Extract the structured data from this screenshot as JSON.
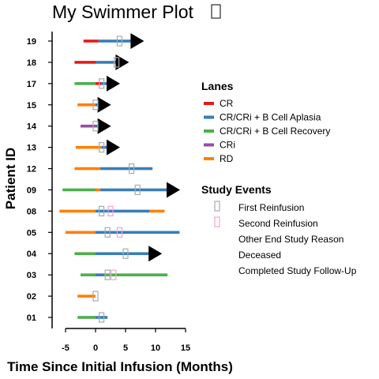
{
  "chart_data": {
    "type": "swimmer",
    "title": "My Swimmer Plot",
    "title_icon": "missing-glyph-box-icon",
    "xlabel": "Time Since Initial Infusion (Months)",
    "ylabel": "Patient ID",
    "xlim": [
      -7.5,
      15
    ],
    "xticks": [
      -5,
      0,
      5,
      10,
      15
    ],
    "patients": [
      "01",
      "02",
      "03",
      "04",
      "05",
      "08",
      "09",
      "12",
      "13",
      "14",
      "15",
      "17",
      "18",
      "19"
    ],
    "lanes_title": "Lanes",
    "lanes": [
      {
        "name": "CR",
        "color": "#e31a1c"
      },
      {
        "name": "CR/CRi + B Cell Aplasia",
        "color": "#377eb8"
      },
      {
        "name": "CR/CRi + B Cell Recovery",
        "color": "#4daf4a"
      },
      {
        "name": "CRi",
        "color": "#984ea3"
      },
      {
        "name": "RD",
        "color": "#ff7f00"
      }
    ],
    "events_title": "Study Events",
    "events": [
      {
        "name": "First Reinfusion",
        "color": "#aaaaaa",
        "icon": "square-outline-icon"
      },
      {
        "name": "Second Reinfusion",
        "color": "#f4a3d0",
        "icon": "square-outline-icon"
      },
      {
        "name": "Other End Study Reason",
        "color": "",
        "icon": ""
      },
      {
        "name": "Deceased",
        "color": "",
        "icon": ""
      },
      {
        "name": "Completed Study Follow-Up",
        "color": "",
        "icon": ""
      }
    ],
    "swimmers": [
      {
        "id": "01",
        "segments": [
          {
            "lane": "CR/CRi + B Cell Recovery",
            "start": -3,
            "end": 0
          },
          {
            "lane": "CR/CRi + B Cell Aplasia",
            "start": 0,
            "end": 2
          }
        ],
        "events": [
          {
            "type": "First Reinfusion",
            "x": 1
          }
        ],
        "arrow": null
      },
      {
        "id": "02",
        "segments": [
          {
            "lane": "RD",
            "start": -3,
            "end": 0
          }
        ],
        "events": [
          {
            "type": "First Reinfusion",
            "x": 0
          }
        ],
        "arrow": null
      },
      {
        "id": "03",
        "segments": [
          {
            "lane": "CR/CRi + B Cell Recovery",
            "start": -2.5,
            "end": 0
          },
          {
            "lane": "CR/CRi + B Cell Aplasia",
            "start": 0,
            "end": 1.5
          },
          {
            "lane": "CR/CRi + B Cell Recovery",
            "start": 1.5,
            "end": 12
          }
        ],
        "events": [
          {
            "type": "First Reinfusion",
            "x": 2
          },
          {
            "type": "Second Reinfusion",
            "x": 3
          }
        ],
        "arrow": null
      },
      {
        "id": "04",
        "segments": [
          {
            "lane": "CR/CRi + B Cell Recovery",
            "start": -3.5,
            "end": 0
          },
          {
            "lane": "CR/CRi + B Cell Aplasia",
            "start": 0,
            "end": 9
          }
        ],
        "events": [
          {
            "type": "First Reinfusion",
            "x": 5
          }
        ],
        "arrow": 9.5
      },
      {
        "id": "05",
        "segments": [
          {
            "lane": "RD",
            "start": -5,
            "end": 0
          },
          {
            "lane": "CR/CRi + B Cell Aplasia",
            "start": 0,
            "end": 14
          }
        ],
        "events": [
          {
            "type": "First Reinfusion",
            "x": 2
          },
          {
            "type": "Second Reinfusion",
            "x": 4
          }
        ],
        "arrow": null
      },
      {
        "id": "08",
        "segments": [
          {
            "lane": "RD",
            "start": -6,
            "end": 0
          },
          {
            "lane": "CR/CRi + B Cell Aplasia",
            "start": 0,
            "end": 9
          },
          {
            "lane": "RD",
            "start": 9,
            "end": 11.5
          }
        ],
        "events": [
          {
            "type": "First Reinfusion",
            "x": 1
          },
          {
            "type": "Second Reinfusion",
            "x": 2.5
          }
        ],
        "arrow": null
      },
      {
        "id": "09",
        "segments": [
          {
            "lane": "CR/CRi + B Cell Recovery",
            "start": -5.5,
            "end": 0
          },
          {
            "lane": "RD",
            "start": 0,
            "end": 0.8
          },
          {
            "lane": "CR/CRi + B Cell Aplasia",
            "start": 0.8,
            "end": 12
          }
        ],
        "events": [
          {
            "type": "First Reinfusion",
            "x": 7
          }
        ],
        "arrow": 12.5
      },
      {
        "id": "12",
        "segments": [
          {
            "lane": "RD",
            "start": -3.5,
            "end": 0.8
          },
          {
            "lane": "CR/CRi + B Cell Aplasia",
            "start": 0.8,
            "end": 9.5
          }
        ],
        "events": [
          {
            "type": "First Reinfusion",
            "x": 6
          }
        ],
        "arrow": null
      },
      {
        "id": "13",
        "segments": [
          {
            "lane": "RD",
            "start": -3.3,
            "end": 1
          },
          {
            "lane": "CR/CRi + B Cell Aplasia",
            "start": 1,
            "end": 2
          }
        ],
        "events": [
          {
            "type": "First Reinfusion",
            "x": 1
          }
        ],
        "arrow": 2.5
      },
      {
        "id": "14",
        "segments": [
          {
            "lane": "CRi",
            "start": -2.5,
            "end": 0
          },
          {
            "lane": "CR/CRi + B Cell Aplasia",
            "start": 0,
            "end": 0.5
          }
        ],
        "events": [
          {
            "type": "First Reinfusion",
            "x": 0
          }
        ],
        "arrow": 1
      },
      {
        "id": "15",
        "segments": [
          {
            "lane": "RD",
            "start": -3,
            "end": 0
          },
          {
            "lane": "CR/CRi + B Cell Aplasia",
            "start": 0,
            "end": 0.5
          }
        ],
        "events": [
          {
            "type": "First Reinfusion",
            "x": 0
          }
        ],
        "arrow": 1
      },
      {
        "id": "17",
        "segments": [
          {
            "lane": "CR/CRi + B Cell Recovery",
            "start": -3.5,
            "end": 0
          },
          {
            "lane": "CR",
            "start": 0,
            "end": 1
          },
          {
            "lane": "CR/CRi + B Cell Aplasia",
            "start": 1,
            "end": 2
          }
        ],
        "events": [
          {
            "type": "First Reinfusion",
            "x": 1
          }
        ],
        "arrow": 2.5
      },
      {
        "id": "18",
        "segments": [
          {
            "lane": "CR",
            "start": -3.5,
            "end": 0
          },
          {
            "lane": "CR/CRi + B Cell Aplasia",
            "start": 0,
            "end": 3.5
          }
        ],
        "events": [
          {
            "type": "First Reinfusion",
            "x": 3.5
          }
        ],
        "arrow": 4
      },
      {
        "id": "19",
        "segments": [
          {
            "lane": "CR",
            "start": -2,
            "end": 0.5
          },
          {
            "lane": "CR/CRi + B Cell Aplasia",
            "start": 0.5,
            "end": 6
          }
        ],
        "events": [
          {
            "type": "First Reinfusion",
            "x": 4
          }
        ],
        "arrow": 6.5
      }
    ]
  }
}
